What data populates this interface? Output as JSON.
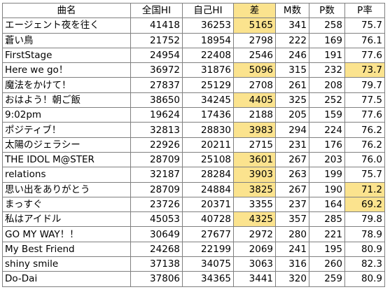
{
  "headers": [
    "曲名",
    "全国HI",
    "自己HI",
    "差",
    "M数",
    "P数",
    "P率"
  ],
  "rows": [
    {
      "name": "エージェント夜を往く",
      "zenkoku": "41418",
      "jiko": "36253",
      "sa": "5165",
      "m": "341",
      "p": "258",
      "pr": "75.7"
    },
    {
      "name": "蒼い鳥",
      "zenkoku": "21752",
      "jiko": "18954",
      "sa": "2798",
      "m": "222",
      "p": "169",
      "pr": "76.1"
    },
    {
      "name": "FirstStage",
      "zenkoku": "24954",
      "jiko": "22408",
      "sa": "2546",
      "m": "246",
      "p": "191",
      "pr": "77.6"
    },
    {
      "name": "Here we go！",
      "zenkoku": "36972",
      "jiko": "31876",
      "sa": "5096",
      "m": "315",
      "p": "232",
      "pr": "73.7"
    },
    {
      "name": "魔法をかけて！",
      "zenkoku": "27837",
      "jiko": "25129",
      "sa": "2708",
      "m": "261",
      "p": "208",
      "pr": "79.7"
    },
    {
      "name": "おはよう！朝ご飯",
      "zenkoku": "38650",
      "jiko": "34245",
      "sa": "4405",
      "m": "325",
      "p": "252",
      "pr": "77.5"
    },
    {
      "name": "9:02pm",
      "zenkoku": "19624",
      "jiko": "17436",
      "sa": "2188",
      "m": "205",
      "p": "159",
      "pr": "77.6"
    },
    {
      "name": "ポジティブ！",
      "zenkoku": "32813",
      "jiko": "28830",
      "sa": "3983",
      "m": "294",
      "p": "224",
      "pr": "76.2"
    },
    {
      "name": "太陽のジェラシー",
      "zenkoku": "22926",
      "jiko": "20211",
      "sa": "2715",
      "m": "231",
      "p": "176",
      "pr": "76.2"
    },
    {
      "name": "THE IDOL M@STER",
      "zenkoku": "28709",
      "jiko": "25108",
      "sa": "3601",
      "m": "267",
      "p": "203",
      "pr": "76.0"
    },
    {
      "name": "relations",
      "zenkoku": "32187",
      "jiko": "28284",
      "sa": "3903",
      "m": "263",
      "p": "199",
      "pr": "75.7"
    },
    {
      "name": "思い出をありがとう",
      "zenkoku": "28709",
      "jiko": "24884",
      "sa": "3825",
      "m": "267",
      "p": "190",
      "pr": "71.2"
    },
    {
      "name": "まっすぐ",
      "zenkoku": "23726",
      "jiko": "20371",
      "sa": "3355",
      "m": "237",
      "p": "164",
      "pr": "69.2"
    },
    {
      "name": "私はアイドル",
      "zenkoku": "45053",
      "jiko": "40728",
      "sa": "4325",
      "m": "357",
      "p": "285",
      "pr": "79.8"
    },
    {
      "name": "GO MY WAY！！",
      "zenkoku": "30649",
      "jiko": "27677",
      "sa": "2972",
      "m": "280",
      "p": "221",
      "pr": "78.9"
    },
    {
      "name": "My Best Friend",
      "zenkoku": "24268",
      "jiko": "22199",
      "sa": "2069",
      "m": "241",
      "p": "195",
      "pr": "80.9"
    },
    {
      "name": "shiny smile",
      "zenkoku": "37138",
      "jiko": "34075",
      "sa": "3063",
      "m": "316",
      "p": "260",
      "pr": "82.3"
    },
    {
      "name": "Do-Dai",
      "zenkoku": "37806",
      "jiko": "34365",
      "sa": "3441",
      "m": "320",
      "p": "259",
      "pr": "80.9"
    }
  ],
  "highlight_color": "#fbe38e",
  "highlight_sa_rows": [
    0,
    3,
    5,
    7,
    9,
    10,
    11,
    13
  ],
  "highlight_pr_rows": [
    3,
    11,
    12
  ]
}
